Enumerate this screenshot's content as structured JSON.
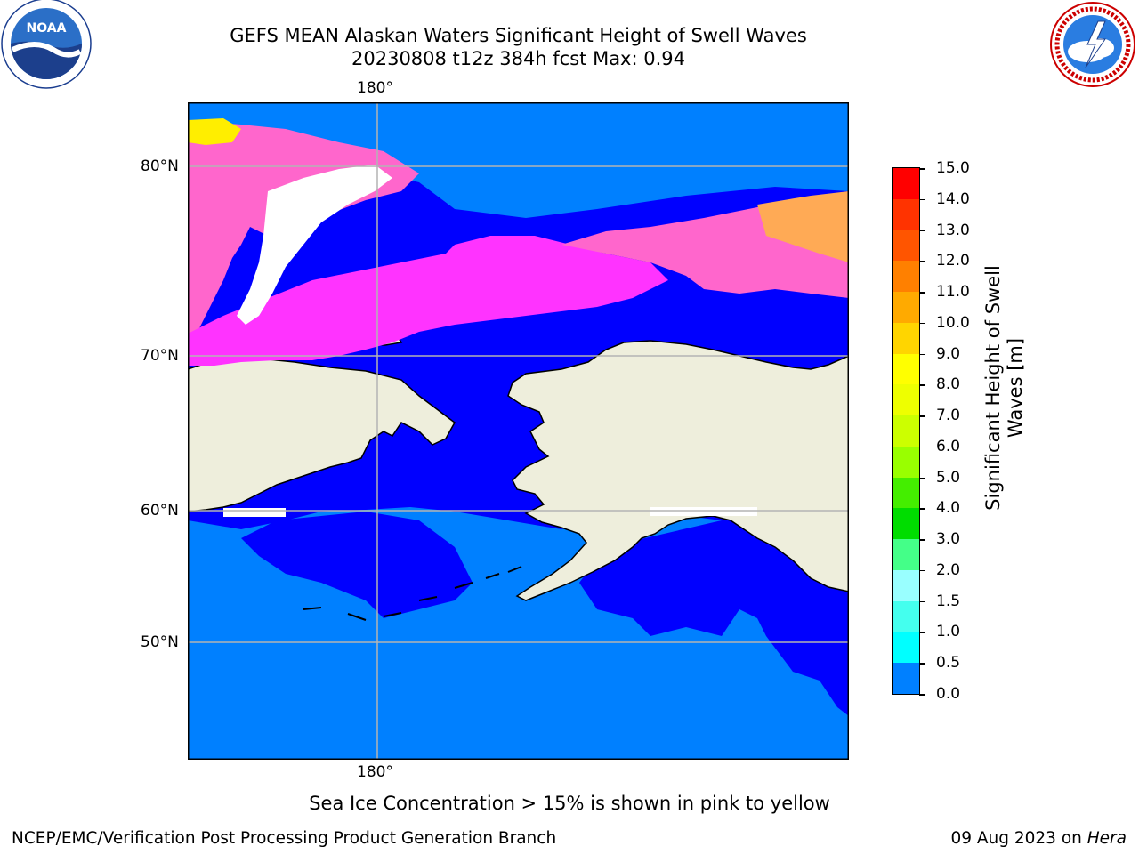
{
  "header": {
    "title_line1": "GEFS MEAN Alaskan Waters Significant Height of Swell Waves",
    "title_line2": "20230808 t12z 384h fcst   Max: 0.94"
  },
  "logos": {
    "noaa": {
      "text": "NOAA",
      "ring_text": "NATIONAL OCEANIC AND ATMOSPHERIC ADMINISTRATION · U.S. DEPARTMENT OF COMMERCE"
    },
    "nws": {
      "ring_text": "NATIONAL WEATHER SERVICE"
    }
  },
  "map": {
    "lon_label_top": "180°",
    "lon_label_bottom": "180°",
    "lat_labels": {
      "lat80": "80°N",
      "lat70": "70°N",
      "lat60": "60°N",
      "lat50": "50°N"
    },
    "colors": {
      "land": "#eeeedc",
      "open_swell_0_0_5": "#0000ff",
      "open_swell_0_5_1": "#0080ff",
      "ice_pink": "#ff66cc",
      "ice_magenta": "#ff33ff",
      "ice_orange": "#ffaa55",
      "ice_yellow": "#ffee00",
      "gridline": "#b4b4b4",
      "coastline": "#000000"
    }
  },
  "colorbar": {
    "label_line1": "Significant Height of Swell",
    "label_line2": "Waves [m]",
    "ticks": [
      "15.0",
      "14.0",
      "13.0",
      "12.0",
      "11.0",
      "10.0",
      "9.0",
      "8.0",
      "7.0",
      "6.0",
      "5.0",
      "4.0",
      "3.0",
      "2.0",
      "1.5",
      "1.0",
      "0.5",
      "0.0"
    ],
    "colors": [
      "#ff0000",
      "#ff3300",
      "#ff5500",
      "#ff8000",
      "#ffaa00",
      "#ffd500",
      "#ffff00",
      "#eeff00",
      "#ccff00",
      "#99ff00",
      "#44ee00",
      "#00dd00",
      "#44ff88",
      "#99ffff",
      "#44ffee",
      "#00ffff",
      "#0080ff",
      "#0000ff"
    ]
  },
  "annotation": "Sea Ice Concentration > 15% is shown in pink to yellow",
  "footer": {
    "left": "NCEP/EMC/Verification Post Processing Product Generation Branch",
    "right_date": "09 Aug 2023 on ",
    "right_host": "Hera"
  }
}
